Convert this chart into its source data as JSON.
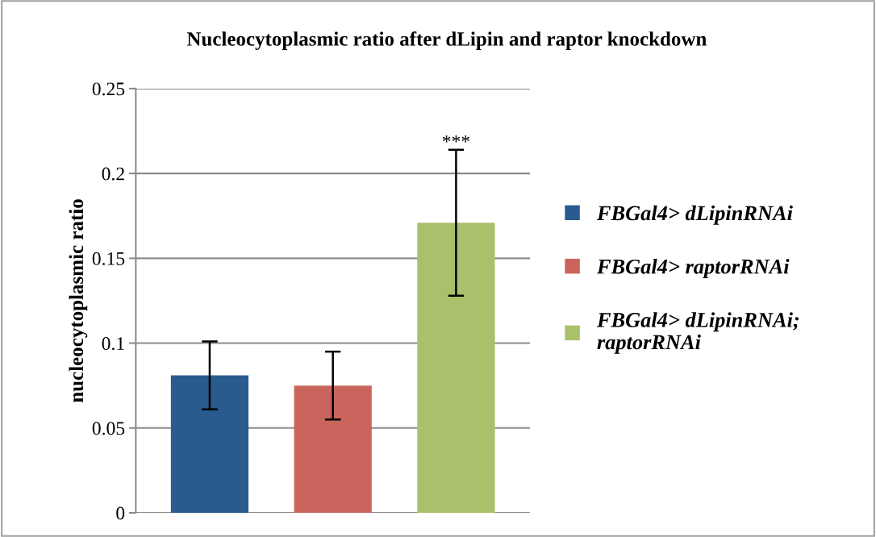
{
  "chart_data": {
    "type": "bar",
    "title": "Nucleocytoplasmic ratio after dLipin and raptor knockdown",
    "ylabel": "nucleocytoplasmic ratio",
    "categories": [
      null,
      null,
      null
    ],
    "series": [
      {
        "name": "FBGal4> dLipinRNAi",
        "color": "#295b8f",
        "values": [
          0.081,
          null,
          null
        ],
        "errors": [
          0.02,
          null,
          null
        ]
      },
      {
        "name": "FBGal4> raptorRNAi",
        "color": "#c9655c",
        "values": [
          null,
          0.075,
          null
        ],
        "errors": [
          null,
          0.02,
          null
        ]
      },
      {
        "name": "FBGal4> dLipinRNAi;\nraptorRNAi",
        "color": "#a8c16a",
        "values": [
          null,
          null,
          0.171
        ],
        "errors": [
          null,
          null,
          0.043
        ]
      }
    ],
    "annotations": [
      "***"
    ],
    "ylim": [
      0,
      0.25
    ],
    "yticks": [
      0,
      0.05,
      0.1,
      0.15,
      0.2,
      0.25
    ],
    "grid": "y",
    "legend": "right"
  }
}
